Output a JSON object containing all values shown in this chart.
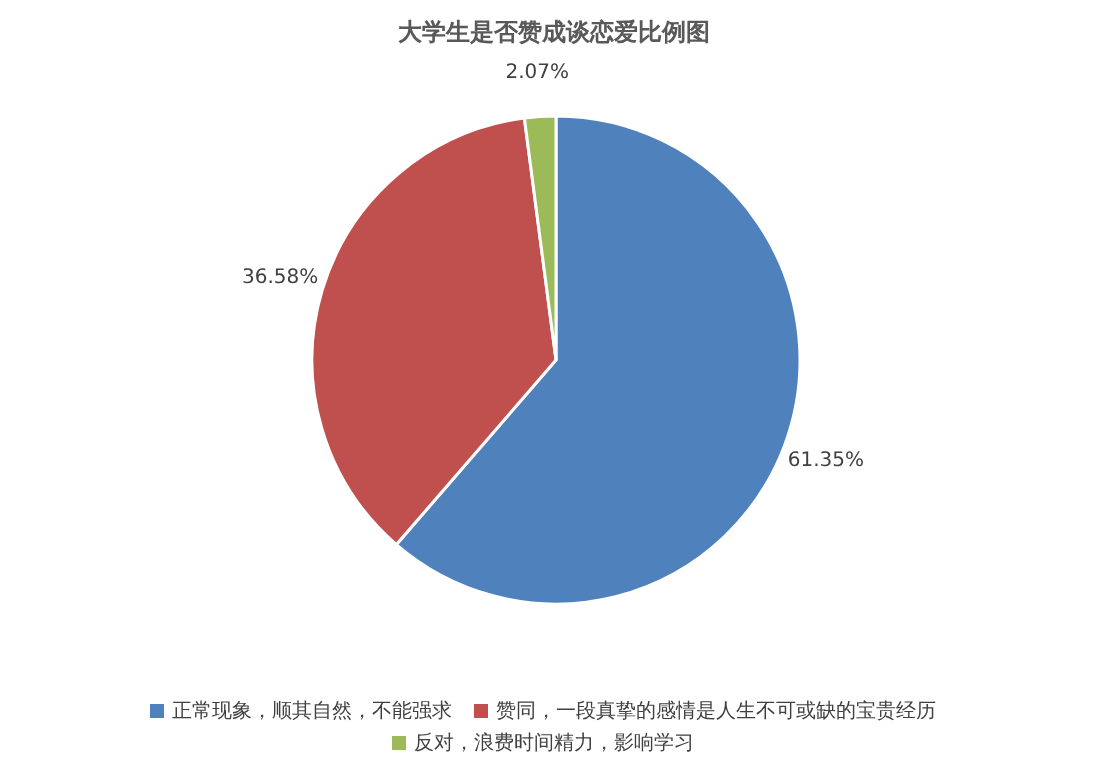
{
  "chart_data": {
    "type": "pie",
    "title": "大学生是否赞成谈恋爱比例图",
    "categories": [
      "正常现象，顺其自然，不能强求",
      "赞同，一段真挚的感情是人生不可或缺的宝贵经历",
      "反对，浪费时间精力，影响学习"
    ],
    "values": [
      61.35,
      36.58,
      2.07
    ],
    "colors": [
      "#4f81bd",
      "#c0504d",
      "#9bbb59"
    ],
    "value_labels": [
      "61.35%",
      "36.58%",
      "2.07%"
    ],
    "legend": "bottom"
  }
}
